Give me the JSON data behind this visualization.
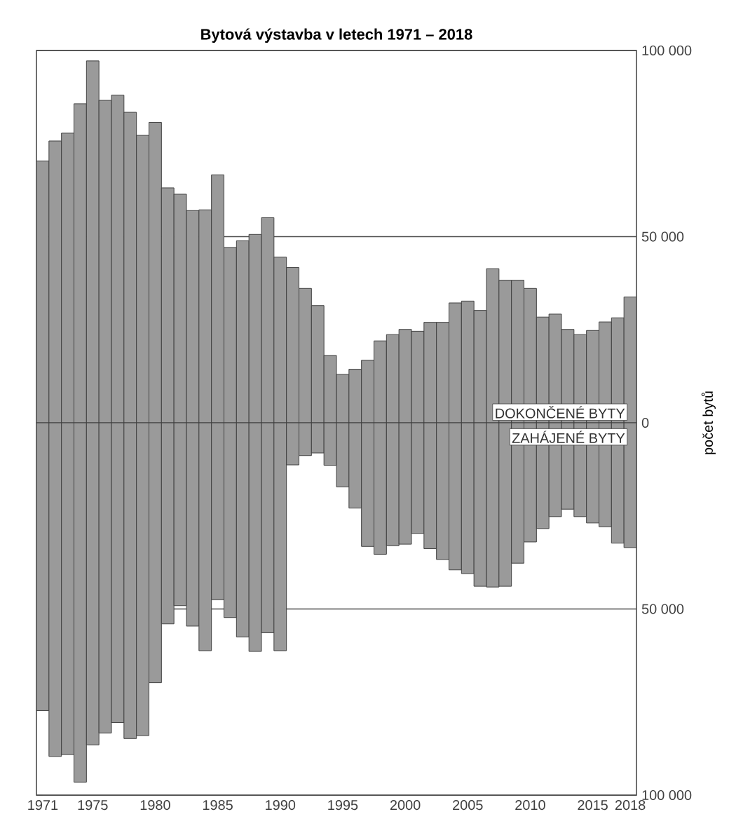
{
  "chart_data": {
    "type": "bar",
    "title": "Bytová výstavba v letech 1971 – 2018",
    "ylabel": "počet bytů",
    "x": [
      1971,
      1972,
      1973,
      1974,
      1975,
      1976,
      1977,
      1978,
      1979,
      1980,
      1981,
      1982,
      1983,
      1984,
      1985,
      1986,
      1987,
      1988,
      1989,
      1990,
      1991,
      1992,
      1993,
      1994,
      1995,
      1996,
      1997,
      1998,
      1999,
      2000,
      2001,
      2002,
      2003,
      2004,
      2005,
      2006,
      2007,
      2008,
      2009,
      2010,
      2011,
      2012,
      2013,
      2014,
      2015,
      2016,
      2017,
      2018
    ],
    "series": [
      {
        "name": "DOKONČENÉ BYTY",
        "color": "#9a9a9a",
        "values": [
          70300,
          75700,
          77800,
          85700,
          97200,
          86600,
          88000,
          83400,
          77200,
          80700,
          63100,
          61400,
          57000,
          57200,
          66600,
          47100,
          48900,
          50600,
          55100,
          44500,
          41700,
          36100,
          31500,
          18100,
          13000,
          14400,
          16800,
          22000,
          23700,
          25100,
          24600,
          27000,
          27000,
          32200,
          32700,
          30200,
          41400,
          38300,
          38300,
          36100,
          28400,
          29200,
          25100,
          23700,
          24800,
          27100,
          28200,
          33800
        ]
      },
      {
        "name": "ZAHÁJENÉ BYTY",
        "color": "#9a9a9a",
        "values": [
          -77300,
          -89600,
          -89100,
          -96500,
          -86500,
          -83300,
          -80500,
          -84800,
          -84000,
          -69800,
          -54000,
          -49100,
          -54600,
          -61200,
          -47500,
          -52300,
          -57500,
          -61400,
          -56400,
          -61200,
          -11300,
          -8800,
          -8100,
          -11400,
          -17200,
          -22900,
          -33200,
          -35300,
          -33000,
          -32600,
          -29700,
          -33800,
          -36700,
          -39500,
          -40500,
          -43900,
          -44100,
          -43900,
          -37700,
          -32000,
          -28400,
          -25200,
          -23200,
          -25200,
          -26900,
          -27900,
          -32300,
          -33500
        ]
      }
    ],
    "xlim": [
      1970.5,
      2018.5
    ],
    "xticks": [
      1971,
      1975,
      1980,
      1985,
      1990,
      1995,
      2000,
      2005,
      2010,
      2015,
      2018
    ],
    "ylim": [
      -100000,
      100000
    ],
    "yticks": [
      {
        "value": -100000,
        "label": "100 000"
      },
      {
        "value": -50000,
        "label": "50 000"
      },
      0,
      {
        "value": 50000,
        "label": "50 000"
      },
      {
        "value": 100000,
        "label": "100 000"
      }
    ],
    "stacked": true,
    "grid": "y"
  }
}
